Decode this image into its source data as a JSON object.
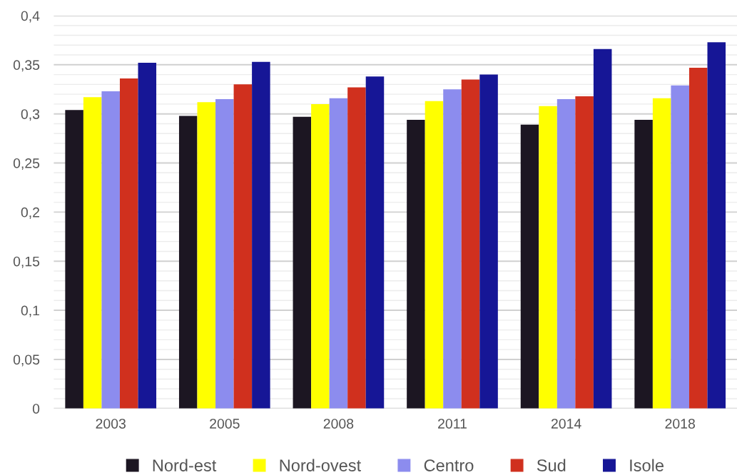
{
  "chart_data": {
    "type": "bar",
    "categories": [
      "2003",
      "2005",
      "2008",
      "2011",
      "2014",
      "2018"
    ],
    "series": [
      {
        "name": "Nord-est",
        "color": "#1c1622",
        "values": [
          0.304,
          0.298,
          0.297,
          0.294,
          0.289,
          0.294
        ]
      },
      {
        "name": "Nord-ovest",
        "color": "#ffff00",
        "values": [
          0.317,
          0.312,
          0.31,
          0.313,
          0.308,
          0.316
        ]
      },
      {
        "name": "Centro",
        "color": "#8c8cee",
        "values": [
          0.323,
          0.315,
          0.316,
          0.325,
          0.315,
          0.329
        ]
      },
      {
        "name": "Sud",
        "color": "#d0301e",
        "values": [
          0.336,
          0.33,
          0.327,
          0.335,
          0.318,
          0.347
        ]
      },
      {
        "name": "Isole",
        "color": "#161696",
        "values": [
          0.352,
          0.353,
          0.338,
          0.34,
          0.366,
          0.373
        ]
      }
    ],
    "ylim": [
      0,
      0.4
    ],
    "yticks": [
      {
        "value": 0,
        "label": "0"
      },
      {
        "value": 0.01,
        "label": null
      },
      {
        "value": 0.02,
        "label": null
      },
      {
        "value": 0.03,
        "label": null
      },
      {
        "value": 0.04,
        "label": null
      },
      {
        "value": 0.05,
        "label": "0,05"
      },
      {
        "value": 0.06,
        "label": null
      },
      {
        "value": 0.07,
        "label": null
      },
      {
        "value": 0.08,
        "label": null
      },
      {
        "value": 0.09,
        "label": null
      },
      {
        "value": 0.1,
        "label": "0,1"
      },
      {
        "value": 0.11,
        "label": null
      },
      {
        "value": 0.12,
        "label": null
      },
      {
        "value": 0.13,
        "label": null
      },
      {
        "value": 0.14,
        "label": null
      },
      {
        "value": 0.15,
        "label": "0,15"
      },
      {
        "value": 0.16,
        "label": null
      },
      {
        "value": 0.17,
        "label": null
      },
      {
        "value": 0.18,
        "label": null
      },
      {
        "value": 0.19,
        "label": null
      },
      {
        "value": 0.2,
        "label": "0,2"
      },
      {
        "value": 0.21,
        "label": null
      },
      {
        "value": 0.22,
        "label": null
      },
      {
        "value": 0.23,
        "label": null
      },
      {
        "value": 0.24,
        "label": null
      },
      {
        "value": 0.25,
        "label": "0,25"
      },
      {
        "value": 0.26,
        "label": null
      },
      {
        "value": 0.27,
        "label": null
      },
      {
        "value": 0.28,
        "label": null
      },
      {
        "value": 0.29,
        "label": null
      },
      {
        "value": 0.3,
        "label": "0,3"
      },
      {
        "value": 0.31,
        "label": null
      },
      {
        "value": 0.32,
        "label": null
      },
      {
        "value": 0.33,
        "label": null
      },
      {
        "value": 0.34,
        "label": null
      },
      {
        "value": 0.35,
        "label": "0,35"
      },
      {
        "value": 0.36,
        "label": null
      },
      {
        "value": 0.37,
        "label": null
      },
      {
        "value": 0.38,
        "label": null
      },
      {
        "value": 0.39,
        "label": null
      },
      {
        "value": 0.4,
        "label": "0,4"
      }
    ],
    "grid": "y",
    "legend": "bottom"
  }
}
